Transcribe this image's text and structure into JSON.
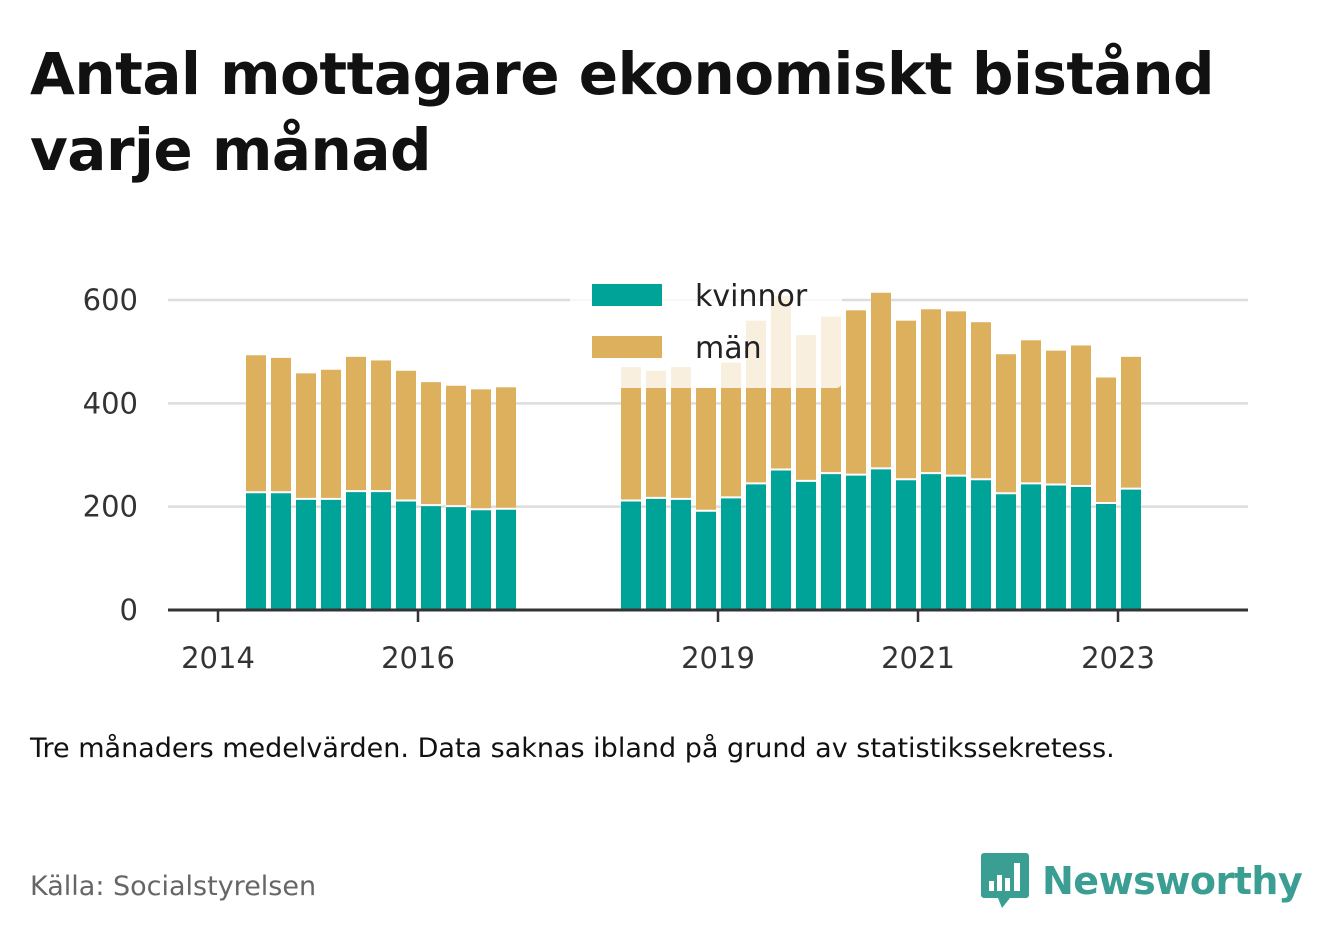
{
  "title": "Antal mottagare ekonomiskt bistånd varje månad",
  "note": "Tre månaders medelvärden. Data saknas ibland på grund av statistikssekretess.",
  "source": "Källa: Socialstyrelsen",
  "brand": {
    "name": "Newsworthy",
    "icon": "bar-chart-speech-bubble-icon",
    "color": "#3a9e93"
  },
  "chart_data": {
    "type": "bar",
    "stacked": true,
    "title": "",
    "xlabel": "",
    "ylabel": "",
    "ylim": [
      0,
      600
    ],
    "yticks": [
      0,
      200,
      400,
      600
    ],
    "grid": true,
    "legend": "top-center",
    "x_ticks": [
      {
        "label": "2014",
        "x": 2014.0
      },
      {
        "label": "2016",
        "x": 2016.0
      },
      {
        "label": "2019",
        "x": 2019.0
      },
      {
        "label": "2021",
        "x": 2021.0
      },
      {
        "label": "2023",
        "x": 2023.0
      }
    ],
    "xlim": [
      2013.5,
      2024.3
    ],
    "x": [
      2014.38,
      2014.63,
      2014.88,
      2015.13,
      2015.38,
      2015.63,
      2015.88,
      2016.13,
      2016.38,
      2016.63,
      2016.88,
      2018.13,
      2018.38,
      2018.63,
      2018.88,
      2019.13,
      2019.38,
      2019.63,
      2019.88,
      2020.13,
      2020.38,
      2020.63,
      2020.88,
      2021.13,
      2021.38,
      2021.63,
      2021.88,
      2022.13,
      2022.38,
      2022.63,
      2022.88,
      2023.13
    ],
    "series": [
      {
        "name": "kvinnor",
        "color": "#00a398",
        "values": [
          228,
          228,
          215,
          215,
          230,
          230,
          212,
          203,
          201,
          195,
          196,
          212,
          217,
          215,
          192,
          218,
          245,
          272,
          250,
          265,
          262,
          274,
          253,
          265,
          260,
          253,
          226,
          245,
          243,
          240,
          207,
          235
        ]
      },
      {
        "name": "män",
        "color": "#dcb05c",
        "values": [
          265,
          260,
          243,
          250,
          260,
          253,
          251,
          238,
          233,
          232,
          235,
          258,
          246,
          255,
          238,
          261,
          315,
          336,
          282,
          303,
          318,
          340,
          307,
          317,
          318,
          304,
          269,
          277,
          259,
          272,
          243,
          255
        ]
      }
    ]
  }
}
